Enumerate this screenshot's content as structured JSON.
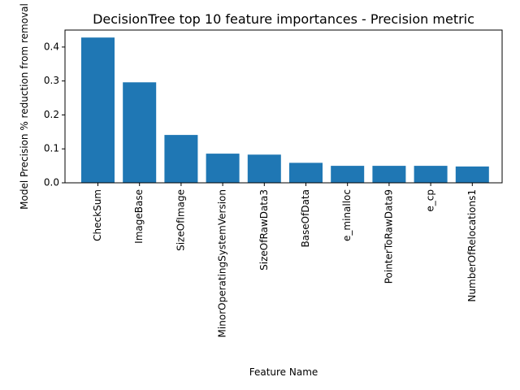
{
  "chart_data": {
    "type": "bar",
    "title": "DecisionTree top 10 feature importances - Precision metric",
    "xlabel": "Feature Name",
    "ylabel": "Model Precision % reduction from removal",
    "categories": [
      "CheckSum",
      "ImageBase",
      "SizeOfImage",
      "MinorOperatingSystemVersion",
      "SizeOfRawData3",
      "BaseOfData",
      "e_minalloc",
      "PointerToRawData9",
      "e_cp",
      "NumberOfRelocations1"
    ],
    "values": [
      0.428,
      0.296,
      0.141,
      0.086,
      0.083,
      0.059,
      0.05,
      0.05,
      0.05,
      0.048
    ],
    "ylim": [
      0,
      0.45
    ],
    "yticks": [
      0.0,
      0.1,
      0.2,
      0.3,
      0.4
    ],
    "ytick_labels": [
      "0.0",
      "0.1",
      "0.2",
      "0.3",
      "0.4"
    ],
    "bar_color": "#1f77b4",
    "grid": false,
    "legend": "none"
  }
}
